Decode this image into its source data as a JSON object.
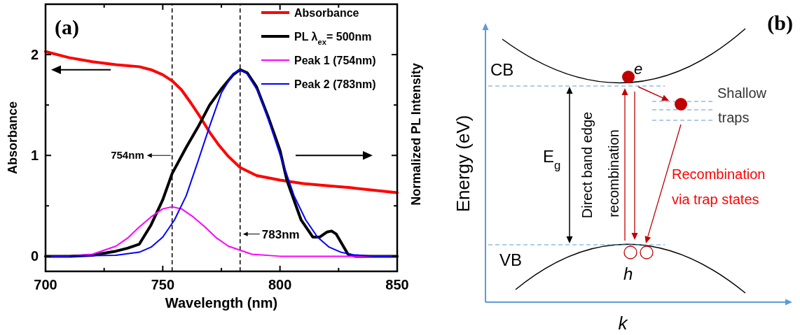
{
  "chart_data": [
    {
      "type": "line",
      "title": "(a)",
      "xlabel": "Wavelength (nm)",
      "ylabel": "Absorbance",
      "y2label": "Normalized PL Intensity",
      "xlim": [
        700,
        850
      ],
      "xticks": [
        700,
        {
          "value": 725,
          "label": null
        },
        750,
        {
          "value": 775,
          "label": null
        },
        800,
        {
          "value": 825,
          "label": null
        },
        850
      ],
      "ylim": [
        -0.15,
        2.5
      ],
      "yticks": [
        0,
        {
          "value": 0.5,
          "label": null
        },
        1,
        {
          "value": 1.5,
          "label": null
        },
        2
      ],
      "legend": "top right",
      "grid": false,
      "series": [
        {
          "name": "Absorbance",
          "color": "#ff0000",
          "x": [
            700,
            710,
            720,
            730,
            740,
            745,
            750,
            754,
            758,
            762,
            766,
            770,
            774,
            778,
            783,
            790,
            800,
            810,
            820,
            830,
            840,
            850
          ],
          "values": [
            2.03,
            1.97,
            1.93,
            1.9,
            1.88,
            1.85,
            1.8,
            1.74,
            1.65,
            1.52,
            1.38,
            1.23,
            1.1,
            0.99,
            0.88,
            0.8,
            0.755,
            0.72,
            0.7,
            0.68,
            0.655,
            0.63
          ]
        },
        {
          "name": "PL λ$_{ex}$= 500nm",
          "color": "#000000",
          "x": [
            700,
            710,
            720,
            725,
            730,
            735,
            740,
            745,
            750,
            754,
            760,
            765,
            770,
            775,
            780,
            783,
            786,
            790,
            795,
            800,
            803,
            809,
            814,
            817,
            820,
            822,
            824,
            827,
            829,
            832,
            840,
            850
          ],
          "values": [
            0,
            0,
            0.01,
            0.03,
            0.05,
            0.08,
            0.12,
            0.31,
            0.56,
            0.82,
            1.08,
            1.28,
            1.5,
            1.66,
            1.8,
            1.85,
            1.82,
            1.68,
            1.38,
            1.05,
            0.75,
            0.36,
            0.19,
            0.19,
            0.24,
            0.25,
            0.22,
            0.1,
            0.02,
            0,
            0,
            0
          ]
        },
        {
          "name": "Peak 1 (754nm)",
          "color": "#ff00ff",
          "x": [
            700,
            710,
            720,
            730,
            735,
            740,
            745,
            750,
            754,
            758,
            763,
            768,
            773,
            778,
            788,
            800,
            850
          ],
          "values": [
            0,
            0,
            0.02,
            0.1,
            0.18,
            0.29,
            0.39,
            0.47,
            0.49,
            0.47,
            0.39,
            0.29,
            0.18,
            0.1,
            0.02,
            0,
            0
          ]
        },
        {
          "name": "Peak 2 (783nm)",
          "color": "#0000ff",
          "x": [
            700,
            730,
            740,
            745,
            750,
            755,
            760,
            765,
            770,
            775,
            780,
            783,
            786,
            791,
            796,
            801,
            806,
            811,
            816,
            821,
            826,
            831,
            840,
            850
          ],
          "values": [
            0,
            0.01,
            0.04,
            0.09,
            0.19,
            0.36,
            0.6,
            0.94,
            1.29,
            1.62,
            1.81,
            1.85,
            1.81,
            1.62,
            1.29,
            0.94,
            0.6,
            0.36,
            0.19,
            0.09,
            0.04,
            0.015,
            0,
            0
          ]
        }
      ],
      "ref_lines": [
        {
          "axis": "x",
          "value": 754,
          "label": "754nm",
          "line_style": "dashed",
          "color": "#000000"
        },
        {
          "axis": "x",
          "value": 783,
          "label": "783nm",
          "line_style": "dashed",
          "color": "#000000"
        }
      ]
    },
    {
      "type": "other",
      "title": "(b)",
      "xlabel": "k",
      "ylabel": "Energy (eV)",
      "annotations": [
        "CB",
        "VB",
        "e",
        "h",
        "E$_{g}$",
        "Direct band edge",
        "recombination",
        "Shallow",
        "traps",
        "Recombination",
        "via trap states"
      ]
    }
  ]
}
